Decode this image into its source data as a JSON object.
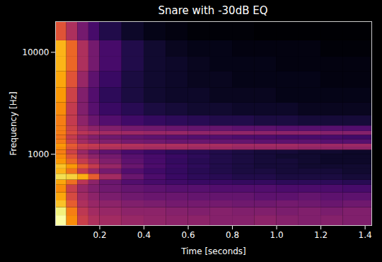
{
  "chart_data": {
    "type": "heatmap",
    "title": "Snare with -30dB EQ",
    "x_label": "Time [seconds]",
    "y_label": "Frequency [Hz]",
    "log": "y",
    "color": "inferno",
    "xlim": [
      0,
      1.43
    ],
    "ylim": [
      200,
      20000
    ],
    "xticks": [
      0.2,
      0.4,
      0.6,
      0.8,
      {
        "value": 1,
        "label": "1.0"
      },
      1.2,
      1.4
    ],
    "yticks": [
      1000,
      10000
    ],
    "time_edges": [
      0,
      0.05,
      0.1,
      0.15,
      0.2,
      0.3,
      0.4,
      0.5,
      0.6,
      0.7,
      0.8,
      0.9,
      1.0,
      1.1,
      1.2,
      1.3,
      1.43
    ],
    "frequency_edges": [
      200,
      250,
      300,
      350,
      420,
      500,
      560,
      640,
      720,
      800,
      900,
      1000,
      1100,
      1180,
      1260,
      1400,
      1540,
      1680,
      1900,
      2400,
      3200,
      4500,
      6500,
      9000,
      13000,
      20000
    ],
    "cells": [
      [
        -22,
        -40,
        -55,
        -60,
        -62,
        -64,
        -65,
        -66,
        -66,
        -67,
        -67,
        -66,
        -67,
        -68,
        -67,
        -68
      ],
      [
        -25,
        -42,
        -57,
        -62,
        -64,
        -66,
        -66,
        -67,
        -68,
        -67,
        -68,
        -68,
        -69,
        -68,
        -69,
        -68
      ],
      [
        -32,
        -48,
        -60,
        -64,
        -66,
        -68,
        -69,
        -70,
        -70,
        -70,
        -71,
        -71,
        -70,
        -71,
        -72,
        -71
      ],
      [
        -36,
        -52,
        -62,
        -66,
        -69,
        -71,
        -72,
        -72,
        -73,
        -73,
        -73,
        -74,
        -74,
        -73,
        -74,
        -74
      ],
      [
        -40,
        -55,
        -64,
        -68,
        -71,
        -73,
        -74,
        -75,
        -75,
        -76,
        -76,
        -76,
        -77,
        -77,
        -77,
        -78
      ],
      [
        -36,
        -45,
        -58,
        -66,
        -72,
        -76,
        -78,
        -79,
        -80,
        -80,
        -81,
        -81,
        -82,
        -82,
        -82,
        -83
      ],
      [
        -28,
        -30,
        -35,
        -48,
        -62,
        -72,
        -77,
        -80,
        -82,
        -83,
        -84,
        -84,
        -85,
        -85,
        -85,
        -86
      ],
      [
        -34,
        -44,
        -56,
        -64,
        -70,
        -76,
        -79,
        -81,
        -83,
        -84,
        -85,
        -85,
        -86,
        -86,
        -86,
        -87
      ],
      [
        -32,
        -38,
        -48,
        -56,
        -64,
        -72,
        -77,
        -80,
        -82,
        -84,
        -85,
        -86,
        -86,
        -87,
        -87,
        -87
      ],
      [
        -38,
        -46,
        -56,
        -62,
        -68,
        -74,
        -78,
        -81,
        -83,
        -84,
        -85,
        -86,
        -86,
        -87,
        -88,
        -88
      ],
      [
        -40,
        -50,
        -60,
        -66,
        -70,
        -75,
        -78,
        -80,
        -82,
        -84,
        -85,
        -86,
        -87,
        -87,
        -88,
        -88
      ],
      [
        -42,
        -54,
        -64,
        -70,
        -74,
        -78,
        -80,
        -82,
        -83,
        -84,
        -85,
        -86,
        -86,
        -87,
        -87,
        -88
      ],
      [
        -40,
        -50,
        -56,
        -58,
        -60,
        -61,
        -62,
        -62,
        -63,
        -63,
        -64,
        -64,
        -64,
        -65,
        -65,
        -65
      ],
      [
        -38,
        -48,
        -54,
        -56,
        -58,
        -59,
        -60,
        -60,
        -61,
        -61,
        -62,
        -62,
        -62,
        -63,
        -63,
        -63
      ],
      [
        -42,
        -54,
        -62,
        -66,
        -68,
        -70,
        -71,
        -72,
        -72,
        -73,
        -73,
        -74,
        -74,
        -74,
        -75,
        -75
      ],
      [
        -44,
        -56,
        -64,
        -68,
        -71,
        -73,
        -74,
        -75,
        -76,
        -76,
        -77,
        -77,
        -78,
        -78,
        -78,
        -79
      ],
      [
        -42,
        -52,
        -58,
        -60,
        -62,
        -63,
        -64,
        -64,
        -65,
        -65,
        -65,
        -66,
        -66,
        -66,
        -67,
        -67
      ],
      [
        -42,
        -54,
        -62,
        -66,
        -68,
        -70,
        -71,
        -72,
        -73,
        -73,
        -74,
        -74,
        -75,
        -75,
        -75,
        -76
      ],
      [
        -42,
        -56,
        -66,
        -72,
        -76,
        -79,
        -81,
        -82,
        -83,
        -84,
        -84,
        -85,
        -85,
        -86,
        -86,
        -86
      ],
      [
        -40,
        -56,
        -68,
        -75,
        -80,
        -83,
        -85,
        -86,
        -87,
        -87,
        -88,
        -88,
        -88,
        -89,
        -89,
        -89
      ],
      [
        -38,
        -54,
        -68,
        -76,
        -82,
        -85,
        -87,
        -88,
        -88,
        -89,
        -89,
        -89,
        -90,
        -90,
        -90,
        -90
      ],
      [
        -36,
        -50,
        -64,
        -74,
        -80,
        -85,
        -87,
        -88,
        -89,
        -89,
        -90,
        -90,
        -90,
        -90,
        -91,
        -91
      ],
      [
        -34,
        -46,
        -60,
        -70,
        -78,
        -84,
        -87,
        -88,
        -89,
        -90,
        -90,
        -90,
        -91,
        -91,
        -91,
        -91
      ],
      [
        -34,
        -46,
        -60,
        -70,
        -78,
        -84,
        -87,
        -89,
        -90,
        -90,
        -91,
        -91,
        -91,
        -91,
        -92,
        -92
      ],
      [
        -50,
        -60,
        -70,
        -78,
        -84,
        -88,
        -90,
        -91,
        -92,
        -92,
        -92,
        -93,
        -93,
        -93,
        -93,
        -93
      ]
    ]
  }
}
